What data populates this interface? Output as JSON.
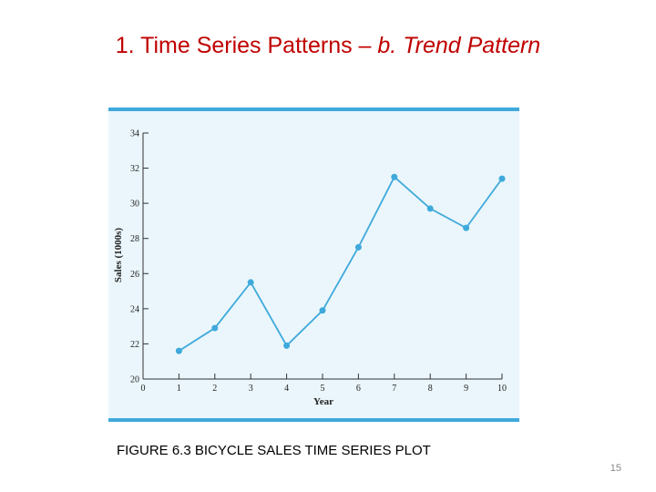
{
  "slide": {
    "title_main": "1. Time Series Patterns – ",
    "title_em": "b. Trend Pattern",
    "caption": "FIGURE 6.3 BICYCLE SALES TIME SERIES PLOT",
    "page_number": "15"
  },
  "colors": {
    "title": "#c00000",
    "series": "#3fa9dc",
    "panel_bg": "#eaf6fb",
    "panel_border": "#3fa9dc"
  },
  "chart_data": {
    "type": "line",
    "title": "",
    "xlabel": "Year",
    "ylabel": "Sales (1000s)",
    "xlim": [
      0,
      10
    ],
    "ylim": [
      20,
      34
    ],
    "x_ticks": [
      0,
      1,
      2,
      3,
      4,
      5,
      6,
      7,
      8,
      9,
      10
    ],
    "y_ticks": [
      20,
      22,
      24,
      26,
      28,
      30,
      32,
      34
    ],
    "grid": false,
    "legend": "none",
    "series": [
      {
        "x": [
          1,
          2,
          3,
          4,
          5,
          6,
          7,
          8,
          9,
          10
        ],
        "values": [
          21.6,
          22.9,
          25.5,
          21.9,
          23.9,
          27.5,
          31.5,
          29.7,
          28.6,
          31.4
        ]
      }
    ]
  }
}
